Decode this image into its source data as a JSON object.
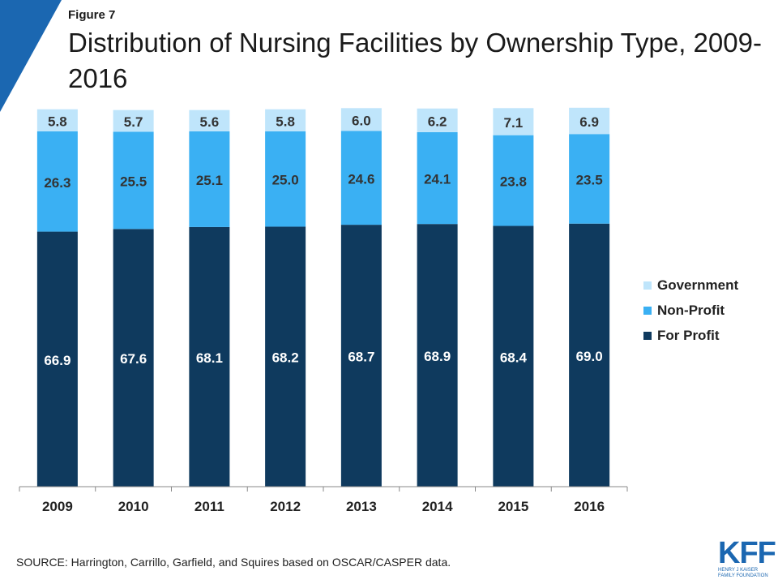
{
  "figure_label": "Figure 7",
  "title": "Distribution of Nursing Facilities by Ownership Type, 2009-2016",
  "source": "SOURCE: Harrington,  Carrillo, Garfield, and Squires based on OSCAR/CASPER data.",
  "logo": {
    "mark": "KFF",
    "line1": "HENRY J KAISER",
    "line2": "FAMILY FOUNDATION"
  },
  "colors": {
    "accent": "#1b67b1",
    "for_profit": "#0f3a5e",
    "non_profit": "#3ab0f3",
    "government": "#bfe5fb"
  },
  "chart_data": {
    "type": "bar",
    "stacked": true,
    "categories": [
      "2009",
      "2010",
      "2011",
      "2012",
      "2013",
      "2014",
      "2015",
      "2016"
    ],
    "series": [
      {
        "name": "For Profit",
        "values": [
          66.9,
          67.6,
          68.1,
          68.2,
          68.7,
          68.9,
          68.4,
          69.0
        ],
        "labels": [
          "66.9",
          "67.6",
          "68.1",
          "68.2",
          "68.7",
          "68.9",
          "68.4",
          "69.0"
        ],
        "color": "#0f3a5e"
      },
      {
        "name": "Non-Profit",
        "values": [
          26.3,
          25.5,
          25.1,
          25.0,
          24.6,
          24.1,
          23.8,
          23.5
        ],
        "labels": [
          "26.3",
          "25.5",
          "25.1",
          "25.0",
          "24.6",
          "24.1",
          "23.8",
          "23.5"
        ],
        "color": "#3ab0f3"
      },
      {
        "name": "Government",
        "values": [
          5.8,
          5.7,
          5.6,
          5.8,
          6.0,
          6.2,
          7.1,
          6.9
        ],
        "labels": [
          "5.8",
          "5.7",
          "5.6",
          "5.8",
          "6.0",
          "6.2",
          "7.1",
          "6.9"
        ],
        "color": "#bfe5fb"
      }
    ],
    "legend_position": "right",
    "ylim": [
      0,
      100
    ],
    "grid": false
  }
}
